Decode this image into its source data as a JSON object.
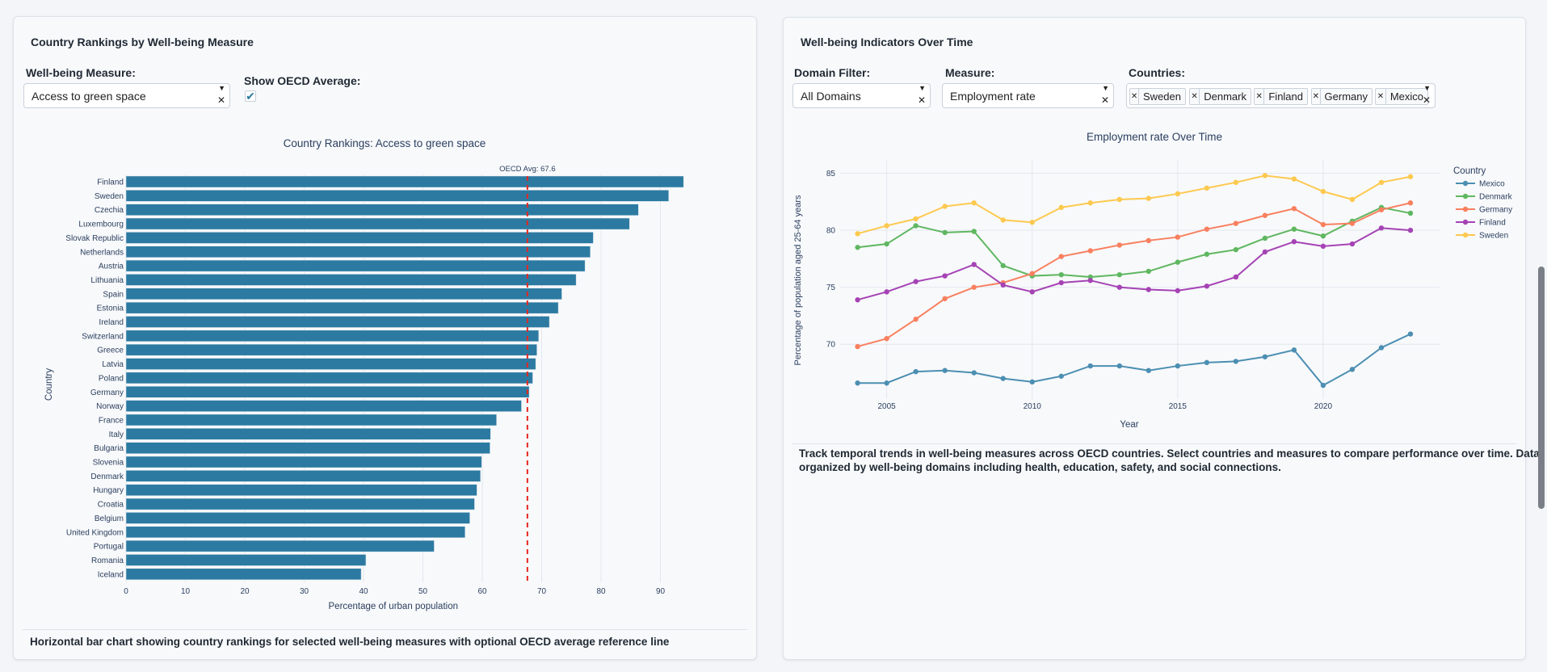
{
  "left_panel": {
    "title": "Country Rankings by Well-being Measure",
    "measure_label": "Well-being Measure:",
    "measure_value": "Access to green space",
    "oecd_label": "Show OECD Average:",
    "oecd_checked": true,
    "description": "Horizontal bar chart showing country rankings for selected well-being measures with optional OECD average reference line"
  },
  "right_panel": {
    "title": "Well-being Indicators Over Time",
    "domain_label": "Domain Filter:",
    "domain_value": "All Domains",
    "measure_label": "Measure:",
    "measure_value": "Employment rate",
    "countries_label": "Countries:",
    "countries": [
      "Sweden",
      "Denmark",
      "Finland",
      "Germany",
      "Mexico"
    ],
    "description_line1": "Track temporal trends in well-being measures across OECD countries. Select countries and measures to compare performance over time. Data",
    "description_line2": "organized by well-being domains including health, education, safety, and social connections."
  },
  "chart_data": [
    {
      "type": "bar",
      "orientation": "horizontal",
      "title": "Country Rankings: Access to green space",
      "xlabel": "Percentage of urban population",
      "ylabel": "Country",
      "xlim": [
        0,
        97
      ],
      "xticks": [
        0,
        10,
        20,
        30,
        40,
        50,
        60,
        70,
        80,
        90
      ],
      "grid": true,
      "color": "#2c7aa1",
      "categories": [
        "Finland",
        "Sweden",
        "Czechia",
        "Luxembourg",
        "Slovak Republic",
        "Netherlands",
        "Austria",
        "Lithuania",
        "Spain",
        "Estonia",
        "Ireland",
        "Switzerland",
        "Greece",
        "Latvia",
        "Poland",
        "Germany",
        "Norway",
        "France",
        "Italy",
        "Bulgaria",
        "Slovenia",
        "Denmark",
        "Hungary",
        "Croatia",
        "Belgium",
        "United Kingdom",
        "Portugal",
        "Romania",
        "Iceland"
      ],
      "values": [
        93.9,
        91.4,
        86.3,
        84.8,
        78.7,
        78.2,
        77.3,
        75.8,
        73.4,
        72.8,
        71.3,
        69.5,
        69.2,
        69.0,
        68.5,
        67.9,
        66.6,
        62.4,
        61.4,
        61.3,
        59.9,
        59.7,
        59.1,
        58.7,
        57.9,
        57.1,
        51.9,
        40.4,
        39.6
      ],
      "reference_line": {
        "value": 67.6,
        "label": "OECD Avg: 67.6",
        "color": "#e8261e",
        "style": "dashed"
      }
    },
    {
      "type": "line",
      "title": "Employment rate Over Time",
      "xlabel": "Year",
      "ylabel": "Percentage of population aged 25-64 years",
      "xlim": [
        2003.4,
        2024
      ],
      "ylim": [
        65.2,
        86.1
      ],
      "xticks": [
        2005,
        2010,
        2015,
        2020
      ],
      "yticks": [
        70,
        75,
        80,
        85
      ],
      "grid": true,
      "legend_title": "Country",
      "legend_position": "right",
      "x": [
        2004,
        2005,
        2006,
        2007,
        2008,
        2009,
        2010,
        2011,
        2012,
        2013,
        2014,
        2015,
        2016,
        2017,
        2018,
        2019,
        2020,
        2021,
        2022,
        2023
      ],
      "series": [
        {
          "name": "Mexico",
          "color": "#4c8fb2",
          "values": [
            66.6,
            66.6,
            67.6,
            67.7,
            67.5,
            67.0,
            66.7,
            67.2,
            68.1,
            68.1,
            67.7,
            68.1,
            68.4,
            68.5,
            68.9,
            69.5,
            66.4,
            67.8,
            69.7,
            70.9
          ]
        },
        {
          "name": "Denmark",
          "color": "#5fb760",
          "values": [
            78.5,
            78.8,
            80.4,
            79.8,
            79.9,
            76.9,
            76.0,
            76.1,
            75.9,
            76.1,
            76.4,
            77.2,
            77.9,
            78.3,
            79.3,
            80.1,
            79.5,
            80.8,
            82.0,
            81.5
          ]
        },
        {
          "name": "Germany",
          "color": "#f8805f",
          "values": [
            69.8,
            70.5,
            72.2,
            74.0,
            75.0,
            75.4,
            76.2,
            77.7,
            78.2,
            78.7,
            79.1,
            79.4,
            80.1,
            80.6,
            81.3,
            81.9,
            80.5,
            80.6,
            81.8,
            82.4
          ]
        },
        {
          "name": "Finland",
          "color": "#a543b4",
          "values": [
            73.9,
            74.6,
            75.5,
            76.0,
            77.0,
            75.2,
            74.6,
            75.4,
            75.6,
            75.0,
            74.8,
            74.7,
            75.1,
            75.9,
            78.1,
            79.0,
            78.6,
            78.8,
            80.2,
            80.0
          ]
        },
        {
          "name": "Sweden",
          "color": "#fdc94f",
          "values": [
            79.7,
            80.4,
            81.0,
            82.1,
            82.4,
            80.9,
            80.7,
            82.0,
            82.4,
            82.7,
            82.8,
            83.2,
            83.7,
            84.2,
            84.8,
            84.5,
            83.4,
            82.7,
            84.2,
            84.7
          ]
        }
      ]
    }
  ]
}
